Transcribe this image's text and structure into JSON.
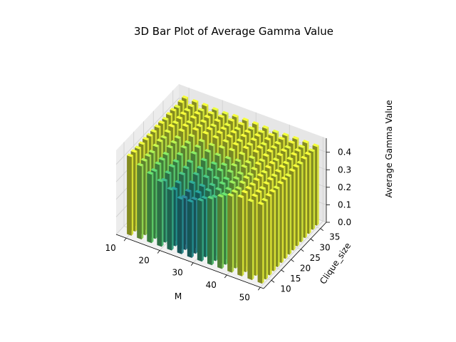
{
  "chart_data": {
    "type": "bar3d",
    "title": "3D Bar Plot of Average Gamma Value",
    "xlabel": "M",
    "ylabel": "Clique_size",
    "zlabel": "Average Gamma Value",
    "xticks": [
      "10",
      "20",
      "30",
      "40",
      "50"
    ],
    "yticks": [
      "10",
      "15",
      "20",
      "25",
      "30",
      "35"
    ],
    "zticks": [
      "0.0",
      "0.1",
      "0.2",
      "0.3",
      "0.4"
    ],
    "xlim": [
      7,
      51
    ],
    "ylim": [
      6,
      38
    ],
    "zlim": [
      0,
      0.48
    ],
    "grid": true,
    "colormap": "viridis",
    "M": [
      10,
      13,
      16,
      19,
      22,
      25,
      28,
      31,
      34,
      37,
      40,
      43,
      46,
      49
    ],
    "clique_size": [
      8,
      10,
      12,
      14,
      16,
      18,
      20,
      22,
      24,
      26,
      28,
      30,
      32,
      34,
      36
    ],
    "peak_gamma": 0.45,
    "min_gamma": 0.24
  }
}
